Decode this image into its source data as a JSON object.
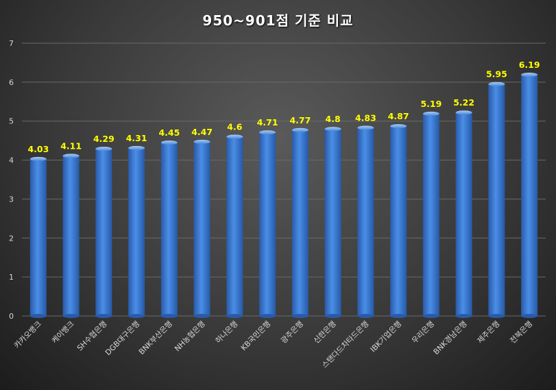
{
  "chart_data": {
    "type": "bar",
    "title": "950~901점 기준 비교",
    "xlabel": "",
    "ylabel": "",
    "ylim": [
      0,
      7
    ],
    "yticks": [
      0,
      1,
      2,
      3,
      4,
      5,
      6,
      7
    ],
    "grid": true,
    "legend": "none",
    "categories": [
      "카카오뱅크",
      "케이뱅크",
      "SH수협은행",
      "DGB대구은행",
      "BNK부산은행",
      "NH농협은행",
      "하나은행",
      "KB국민은행",
      "광주은행",
      "신한은행",
      "스탠다드차타드은행",
      "IBK기업은행",
      "우리은행",
      "BNK경남은행",
      "제주은행",
      "전북은행"
    ],
    "values": [
      4.03,
      4.11,
      4.29,
      4.31,
      4.45,
      4.47,
      4.6,
      4.71,
      4.77,
      4.8,
      4.83,
      4.87,
      5.19,
      5.22,
      5.95,
      6.19
    ],
    "colors": {
      "bar": "#3f7fd6",
      "data_label": "#ffff00",
      "grid": "#6a6a6a",
      "text": "#d8d8d8"
    }
  }
}
